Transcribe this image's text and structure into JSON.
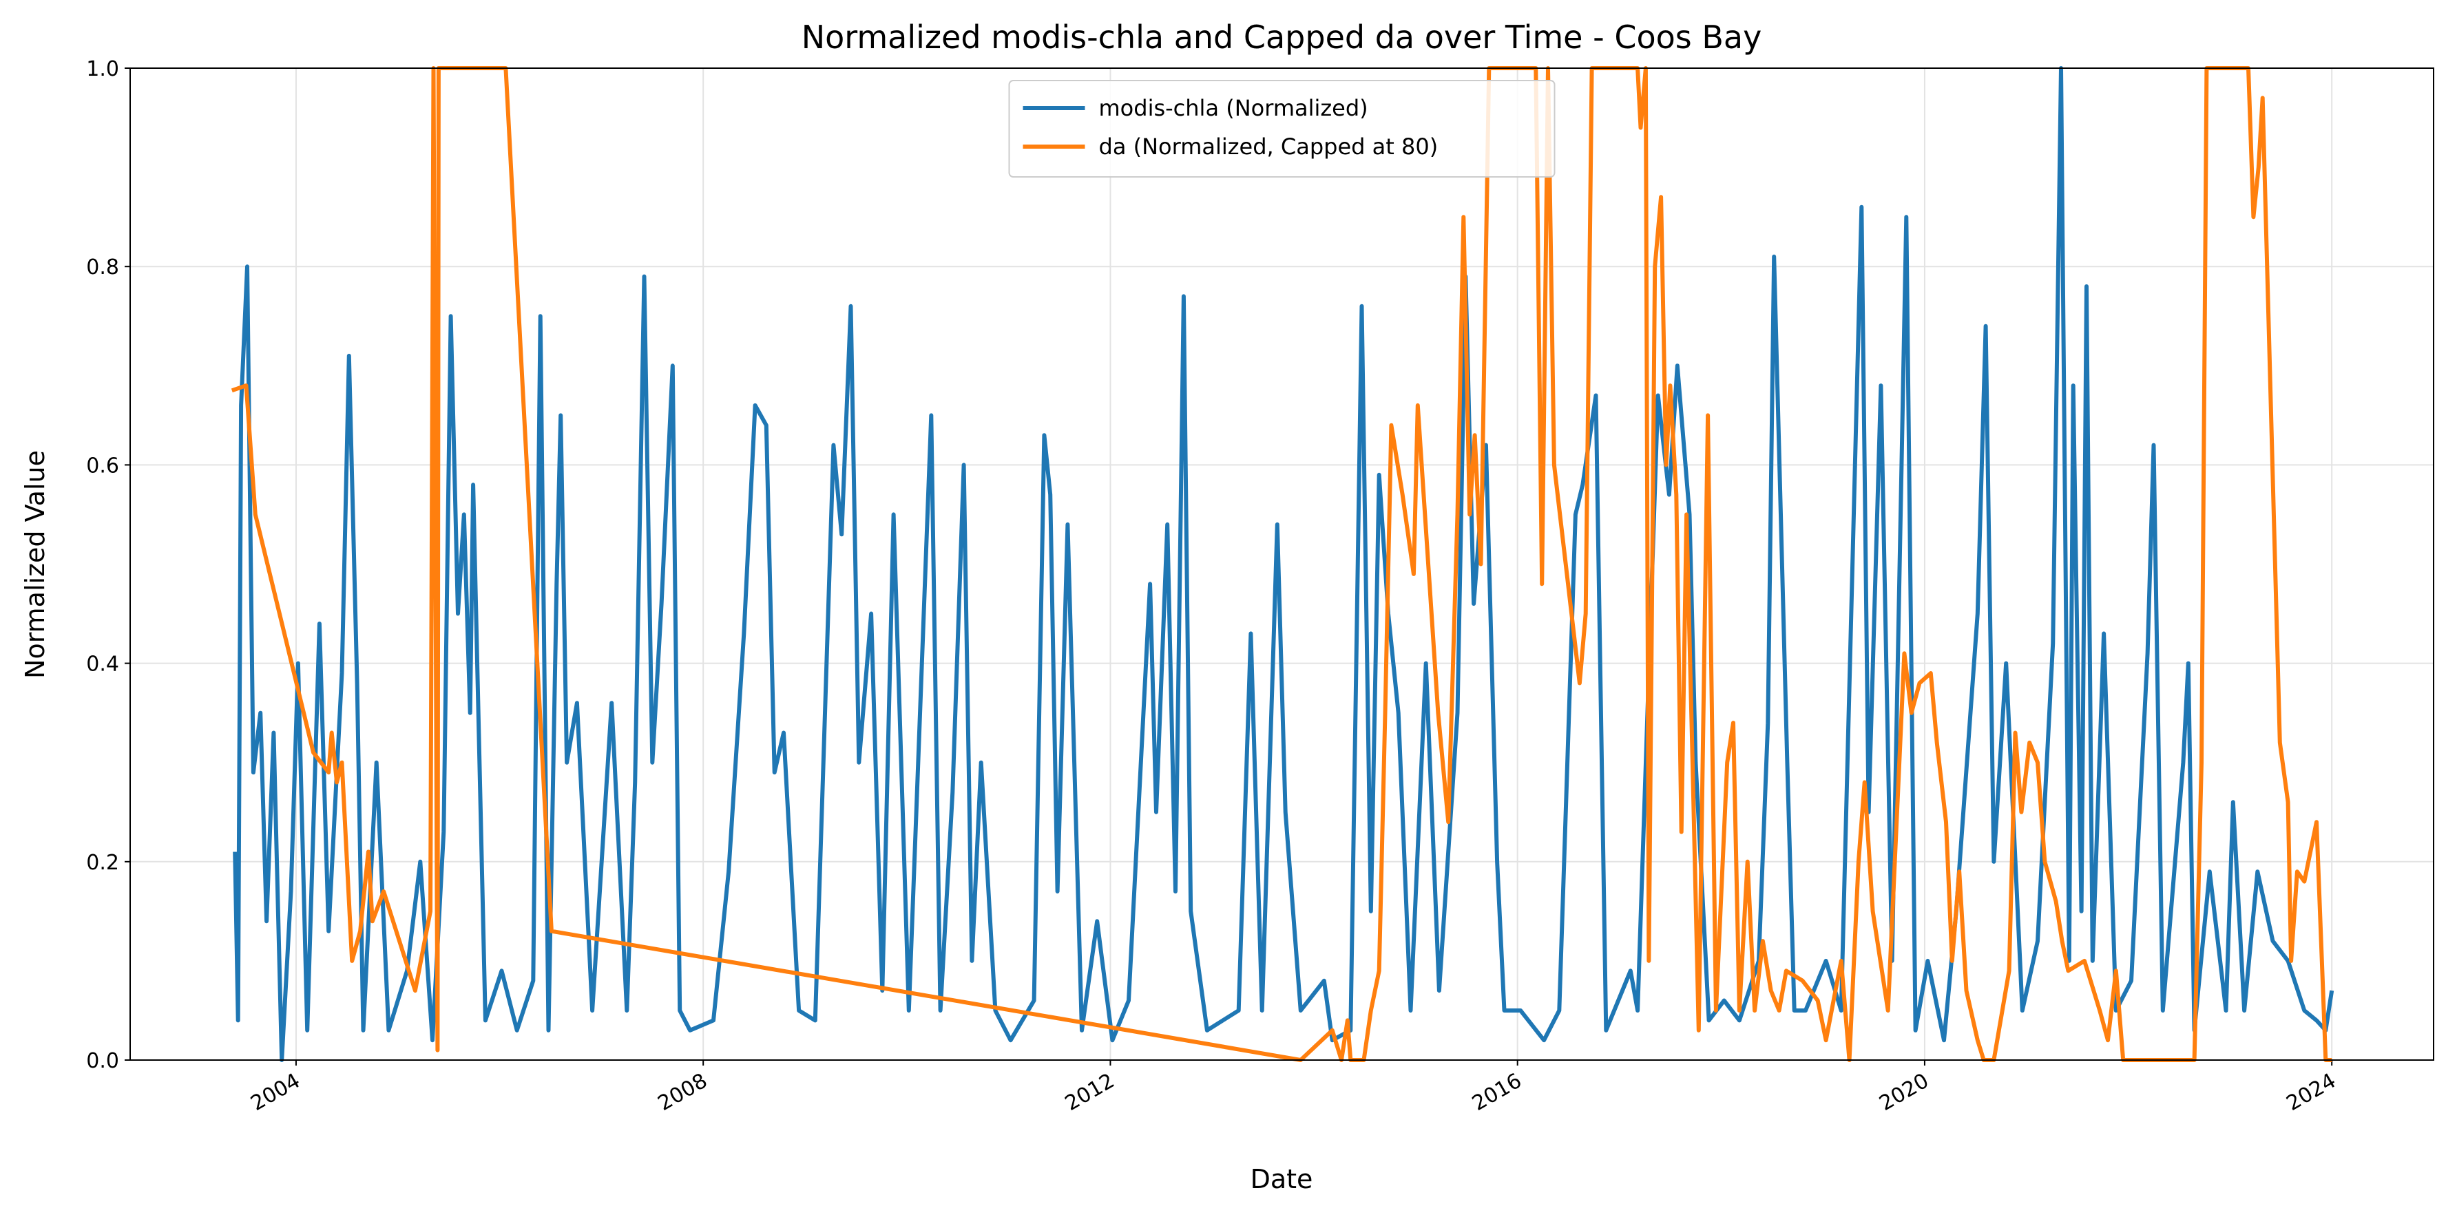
{
  "chart_data": {
    "type": "line",
    "title": "Normalized modis-chla and Capped da over Time - Coos Bay",
    "xlabel": "Date",
    "ylabel": "Normalized Value",
    "xlim": [
      2002.37,
      2025.0
    ],
    "ylim": [
      0,
      1
    ],
    "xticks": [
      2004,
      2008,
      2012,
      2016,
      2020,
      2024
    ],
    "yticks": [
      {
        "value": 0,
        "label": "0.0"
      },
      0.2,
      0.4,
      0.6,
      0.8,
      {
        "value": 1,
        "label": "1.0"
      }
    ],
    "grid": true,
    "legend": "upper center",
    "series": [
      {
        "name": "modis-chla (Normalized)",
        "color": "#1f77b4",
        "x": [
          2003.4,
          2003.43,
          2003.46,
          2003.52,
          2003.58,
          2003.65,
          2003.71,
          2003.78,
          2003.86,
          2003.95,
          2004.02,
          2004.11,
          2004.23,
          2004.32,
          2004.45,
          2004.52,
          2004.6,
          2004.66,
          2004.79,
          2004.91,
          2005.09,
          2005.22,
          2005.34,
          2005.45,
          2005.52,
          2005.59,
          2005.65,
          2005.71,
          2005.74,
          2005.86,
          2006.02,
          2006.17,
          2006.33,
          2006.4,
          2006.48,
          2006.56,
          2006.6,
          2006.66,
          2006.76,
          2006.91,
          2007.1,
          2007.25,
          2007.33,
          2007.42,
          2007.5,
          2007.59,
          2007.7,
          2007.77,
          2007.87,
          2008.1,
          2008.25,
          2008.4,
          2008.51,
          2008.62,
          2008.7,
          2008.79,
          2008.94,
          2009.1,
          2009.28,
          2009.36,
          2009.45,
          2009.53,
          2009.65,
          2009.76,
          2009.87,
          2010.02,
          2010.24,
          2010.33,
          2010.45,
          2010.56,
          2010.64,
          2010.73,
          2010.87,
          2011.02,
          2011.25,
          2011.35,
          2011.41,
          2011.48,
          2011.58,
          2011.72,
          2011.87,
          2012.02,
          2012.18,
          2012.39,
          2012.45,
          2012.56,
          2012.64,
          2012.72,
          2012.79,
          2012.95,
          2013.26,
          2013.38,
          2013.49,
          2013.64,
          2013.72,
          2013.87,
          2014.1,
          2014.18,
          2014.36,
          2014.47,
          2014.56,
          2014.64,
          2014.73,
          2014.83,
          2014.95,
          2015.1,
          2015.23,
          2015.41,
          2015.49,
          2015.57,
          2015.69,
          2015.8,
          2015.87,
          2016.03,
          2016.26,
          2016.41,
          2016.57,
          2016.64,
          2016.77,
          2016.87,
          2017.11,
          2017.18,
          2017.38,
          2017.49,
          2017.57,
          2017.69,
          2017.75,
          2017.88,
          2018.03,
          2018.18,
          2018.37,
          2018.46,
          2018.52,
          2018.65,
          2018.72,
          2018.83,
          2019.03,
          2019.18,
          2019.38,
          2019.45,
          2019.57,
          2019.68,
          2019.82,
          2019.91,
          2020.03,
          2020.19,
          2020.31,
          2020.52,
          2020.6,
          2020.68,
          2020.8,
          2020.96,
          2021.11,
          2021.26,
          2021.34,
          2021.42,
          2021.46,
          2021.54,
          2021.59,
          2021.65,
          2021.76,
          2021.88,
          2022.03,
          2022.19,
          2022.25,
          2022.34,
          2022.54,
          2022.59,
          2022.65,
          2022.8,
          2022.96,
          2023.03,
          2023.14,
          2023.27,
          2023.42,
          2023.57,
          2023.73,
          2023.85,
          2023.94,
          2024.0
        ],
        "values": [
          0.21,
          0.04,
          0.66,
          0.8,
          0.29,
          0.35,
          0.14,
          0.33,
          0.0,
          0.17,
          0.4,
          0.03,
          0.44,
          0.13,
          0.39,
          0.71,
          0.38,
          0.03,
          0.3,
          0.03,
          0.09,
          0.2,
          0.02,
          0.23,
          0.75,
          0.45,
          0.55,
          0.35,
          0.58,
          0.04,
          0.09,
          0.03,
          0.08,
          0.75,
          0.03,
          0.48,
          0.65,
          0.3,
          0.36,
          0.05,
          0.36,
          0.05,
          0.28,
          0.79,
          0.3,
          0.46,
          0.7,
          0.05,
          0.03,
          0.04,
          0.19,
          0.43,
          0.66,
          0.64,
          0.29,
          0.33,
          0.05,
          0.04,
          0.62,
          0.53,
          0.76,
          0.3,
          0.45,
          0.07,
          0.55,
          0.05,
          0.65,
          0.05,
          0.27,
          0.6,
          0.1,
          0.3,
          0.05,
          0.02,
          0.06,
          0.63,
          0.57,
          0.17,
          0.54,
          0.03,
          0.14,
          0.02,
          0.06,
          0.48,
          0.25,
          0.54,
          0.17,
          0.77,
          0.15,
          0.03,
          0.05,
          0.43,
          0.05,
          0.54,
          0.25,
          0.05,
          0.08,
          0.02,
          0.03,
          0.76,
          0.15,
          0.59,
          0.45,
          0.35,
          0.05,
          0.4,
          0.07,
          0.35,
          0.79,
          0.46,
          0.62,
          0.2,
          0.05,
          0.05,
          0.02,
          0.05,
          0.55,
          0.58,
          0.67,
          0.03,
          0.09,
          0.05,
          0.67,
          0.57,
          0.7,
          0.55,
          0.3,
          0.04,
          0.06,
          0.04,
          0.1,
          0.34,
          0.81,
          0.3,
          0.05,
          0.05,
          0.1,
          0.05,
          0.86,
          0.25,
          0.68,
          0.1,
          0.85,
          0.03,
          0.1,
          0.02,
          0.15,
          0.45,
          0.74,
          0.2,
          0.4,
          0.05,
          0.12,
          0.42,
          1.0,
          0.1,
          0.68,
          0.15,
          0.78,
          0.1,
          0.43,
          0.05,
          0.08,
          0.41,
          0.62,
          0.05,
          0.3,
          0.4,
          0.03,
          0.19,
          0.05,
          0.26,
          0.05,
          0.19,
          0.12,
          0.1,
          0.05,
          0.04,
          0.03,
          0.07
        ]
      },
      {
        "name": "da (Normalized, Capped at 80)",
        "color": "#ff7f0e",
        "x": [
          2003.37,
          2003.51,
          2003.6,
          2004.17,
          2004.32,
          2004.35,
          2004.4,
          2004.45,
          2004.55,
          2004.63,
          2004.71,
          2004.75,
          2004.86,
          2005.17,
          2005.32,
          2005.35,
          2005.39,
          2005.4,
          2006.06,
          2006.51,
          2013.87,
          2014.18,
          2014.27,
          2014.33,
          2014.36,
          2014.42,
          2014.49,
          2014.56,
          2014.64,
          2014.7,
          2014.76,
          2014.87,
          2014.98,
          2015.02,
          2015.22,
          2015.32,
          2015.41,
          2015.47,
          2015.53,
          2015.58,
          2015.64,
          2015.72,
          2015.87,
          2016.18,
          2016.24,
          2016.3,
          2016.36,
          2016.61,
          2016.67,
          2016.73,
          2017.18,
          2017.21,
          2017.26,
          2017.29,
          2017.35,
          2017.41,
          2017.46,
          2017.5,
          2017.56,
          2017.61,
          2017.66,
          2017.72,
          2017.78,
          2017.87,
          2017.95,
          2018.06,
          2018.12,
          2018.18,
          2018.26,
          2018.33,
          2018.41,
          2018.49,
          2018.57,
          2018.64,
          2018.8,
          2018.95,
          2019.03,
          2019.18,
          2019.26,
          2019.35,
          2019.41,
          2019.49,
          2019.64,
          2019.8,
          2019.87,
          2019.95,
          2020.06,
          2020.12,
          2020.21,
          2020.27,
          2020.34,
          2020.41,
          2020.52,
          2020.58,
          2020.68,
          2020.83,
          2020.89,
          2020.95,
          2021.03,
          2021.11,
          2021.18,
          2021.29,
          2021.35,
          2021.41,
          2021.57,
          2021.72,
          2021.8,
          2021.88,
          2021.95,
          2022.65,
          2022.72,
          2022.77,
          2023.18,
          2023.23,
          2023.28,
          2023.32,
          2023.49,
          2023.57,
          2023.6,
          2023.66,
          2023.73,
          2023.85,
          2023.91,
          2023.94,
          2024.0
        ],
        "values": [
          0.675,
          0.68,
          0.55,
          0.31,
          0.29,
          0.33,
          0.28,
          0.3,
          0.1,
          0.13,
          0.21,
          0.14,
          0.17,
          0.07,
          0.15,
          1.0,
          0.01,
          1.0,
          1.0,
          0.13,
          0.0,
          0.03,
          0.0,
          0.04,
          0.0,
          0.0,
          0.0,
          0.05,
          0.09,
          0.35,
          0.64,
          0.57,
          0.49,
          0.66,
          0.35,
          0.24,
          0.55,
          0.85,
          0.55,
          0.63,
          0.5,
          1.0,
          1.0,
          1.0,
          0.48,
          1.0,
          0.6,
          0.38,
          0.45,
          1.0,
          1.0,
          0.94,
          1.0,
          0.1,
          0.8,
          0.87,
          0.6,
          0.68,
          0.57,
          0.23,
          0.55,
          0.3,
          0.03,
          0.65,
          0.05,
          0.3,
          0.34,
          0.05,
          0.2,
          0.05,
          0.12,
          0.07,
          0.05,
          0.09,
          0.08,
          0.06,
          0.02,
          0.1,
          0.0,
          0.2,
          0.28,
          0.15,
          0.05,
          0.41,
          0.35,
          0.38,
          0.39,
          0.32,
          0.24,
          0.1,
          0.19,
          0.07,
          0.02,
          0.0,
          0.0,
          0.09,
          0.33,
          0.25,
          0.32,
          0.3,
          0.2,
          0.16,
          0.12,
          0.09,
          0.1,
          0.05,
          0.02,
          0.09,
          0.0,
          0.0,
          0.3,
          1.0,
          1.0,
          0.85,
          0.9,
          0.97,
          0.32,
          0.26,
          0.1,
          0.19,
          0.18,
          0.24,
          0.08,
          0.0,
          0.0
        ]
      }
    ]
  }
}
